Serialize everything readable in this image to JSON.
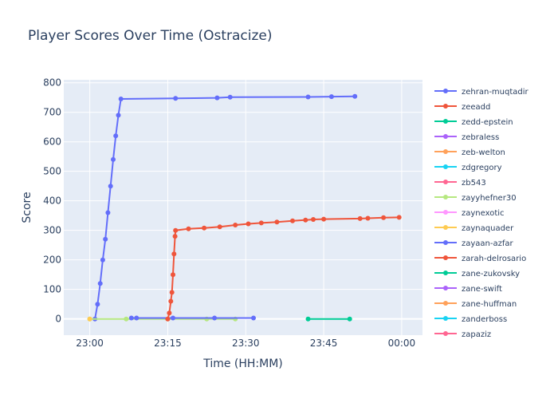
{
  "chart_data": {
    "type": "line",
    "title": "Player Scores Over Time (Ostracize)",
    "xlabel": "Time (HH:MM)",
    "ylabel": "Score",
    "x_ticks": [
      "23:00",
      "23:15",
      "23:30",
      "23:45",
      "00:00"
    ],
    "y_ticks": [
      0,
      100,
      200,
      300,
      400,
      500,
      600,
      700,
      800
    ],
    "ylim": [
      -55,
      810
    ],
    "xlim_minutes": [
      -5,
      64
    ],
    "grid": true,
    "legend_position": "right",
    "series": [
      {
        "name": "zehran-muqtadir",
        "color": "#636efa",
        "points": [
          [
            1,
            0
          ],
          [
            1.5,
            50
          ],
          [
            2,
            120
          ],
          [
            2.5,
            200
          ],
          [
            3,
            270
          ],
          [
            3.5,
            360
          ],
          [
            4,
            450
          ],
          [
            4.5,
            540
          ],
          [
            5,
            620
          ],
          [
            5.5,
            690
          ],
          [
            6,
            745
          ],
          [
            16.5,
            747
          ],
          [
            24.5,
            749
          ],
          [
            27,
            751
          ],
          [
            42,
            752
          ],
          [
            46.5,
            753
          ],
          [
            51,
            754
          ]
        ]
      },
      {
        "name": "zeeadd",
        "color": "#ef553b",
        "points": []
      },
      {
        "name": "zedd-epstein",
        "color": "#00cc96",
        "points": [
          [
            42,
            0
          ],
          [
            50,
            0
          ]
        ]
      },
      {
        "name": "zebraless",
        "color": "#ab63fa",
        "points": []
      },
      {
        "name": "zeb-welton",
        "color": "#ffa15a",
        "points": []
      },
      {
        "name": "zdgregory",
        "color": "#19d3f3",
        "points": []
      },
      {
        "name": "zb543",
        "color": "#ff6692",
        "points": []
      },
      {
        "name": "zayyhefner30",
        "color": "#b6e880",
        "points": [
          [
            0,
            0
          ],
          [
            7,
            0
          ],
          [
            15,
            0
          ],
          [
            22.5,
            0
          ],
          [
            28,
            0
          ]
        ]
      },
      {
        "name": "zaynexotic",
        "color": "#ff97ff",
        "points": []
      },
      {
        "name": "zaynaquader",
        "color": "#fecb52",
        "points": [
          [
            0,
            0
          ]
        ]
      },
      {
        "name": "zayaan-azfar",
        "color": "#636efa",
        "points": [
          [
            8,
            3
          ],
          [
            9,
            3
          ],
          [
            16,
            3
          ],
          [
            24,
            3
          ],
          [
            31.5,
            3
          ]
        ]
      },
      {
        "name": "zarah-delrosario",
        "color": "#ef553b",
        "points": [
          [
            15,
            0
          ],
          [
            15.3,
            20
          ],
          [
            15.6,
            60
          ],
          [
            15.8,
            90
          ],
          [
            16,
            150
          ],
          [
            16.2,
            220
          ],
          [
            16.4,
            280
          ],
          [
            16.5,
            300
          ],
          [
            19,
            305
          ],
          [
            22,
            308
          ],
          [
            25,
            312
          ],
          [
            28,
            318
          ],
          [
            30.5,
            322
          ],
          [
            33,
            325
          ],
          [
            36,
            328
          ],
          [
            39,
            332
          ],
          [
            41.5,
            335
          ],
          [
            43,
            337
          ],
          [
            45,
            338
          ],
          [
            52,
            340
          ],
          [
            53.5,
            341
          ],
          [
            56.5,
            343
          ],
          [
            59.5,
            344
          ]
        ]
      },
      {
        "name": "zane-zukovsky",
        "color": "#00cc96",
        "points": []
      },
      {
        "name": "zane-swift",
        "color": "#ab63fa",
        "points": []
      },
      {
        "name": "zane-huffman",
        "color": "#ffa15a",
        "points": []
      },
      {
        "name": "zanderboss",
        "color": "#19d3f3",
        "points": []
      },
      {
        "name": "zapaziz",
        "color": "#ff6692",
        "points": []
      }
    ]
  }
}
